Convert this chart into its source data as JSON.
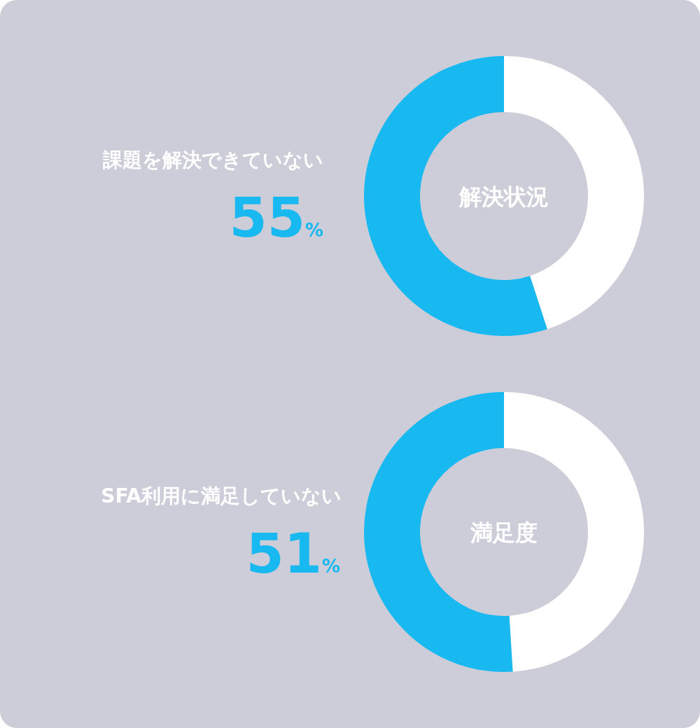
{
  "chart_data": [
    {
      "type": "donut",
      "title": "解決状況",
      "categories": [
        null,
        "課題を解決できていない"
      ],
      "values": [
        45,
        55
      ],
      "colors": [
        "#ffffff",
        "#18b8f0"
      ],
      "value_labels": [
        null,
        "55%"
      ]
    },
    {
      "type": "donut",
      "title": "満足度",
      "categories": [
        null,
        "SFA利用に満足していない"
      ],
      "values": [
        49,
        51
      ],
      "colors": [
        "#ffffff",
        "#18b8f0"
      ],
      "value_labels": [
        null,
        "51%"
      ]
    }
  ]
}
